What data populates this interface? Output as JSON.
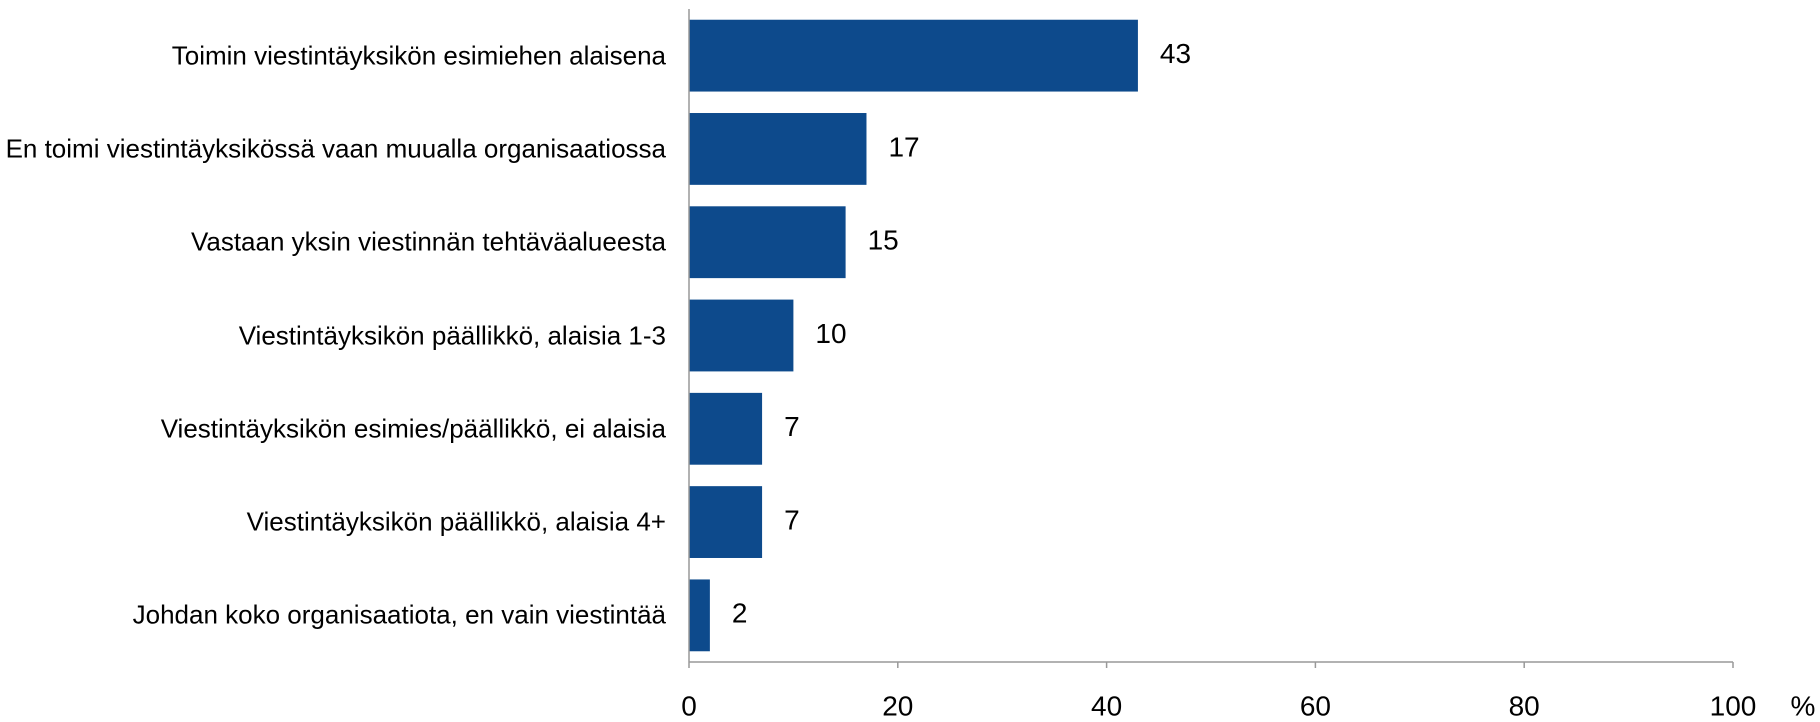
{
  "chart_data": {
    "type": "bar",
    "orientation": "horizontal",
    "categories": [
      "Toimin viestintäyksikön esimiehen alaisena",
      "En toimi viestintäyksikössä vaan muualla organisaatiossa",
      "Vastaan yksin viestinnän tehtäväalueesta",
      "Viestintäyksikön päällikkö, alaisia 1-3",
      "Viestintäyksikön esimies/päällikkö, ei alaisia",
      "Viestintäyksikön päällikkö, alaisia 4+",
      "Johdan koko organisaatiota, en vain viestintää"
    ],
    "values": [
      43,
      17,
      15,
      10,
      7,
      7,
      2
    ],
    "color": "#0d4a8c",
    "xlim": [
      0,
      100
    ],
    "xticks": [
      0,
      20,
      40,
      60,
      80,
      100
    ],
    "xlabel": "%",
    "grid": false
  }
}
